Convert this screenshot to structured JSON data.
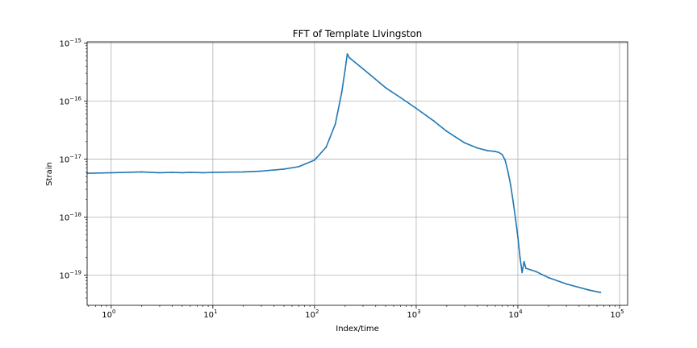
{
  "chart_data": {
    "type": "line",
    "title": "FFT of Template LIvingston",
    "xlabel": "Index/time",
    "ylabel": "Strain",
    "xscale": "log",
    "yscale": "log",
    "xlim": [
      0.58,
      120000
    ],
    "ylim": [
      3e-20,
      1.05e-15
    ],
    "grid": true,
    "x_ticks": [
      {
        "value": 1,
        "base": "10",
        "exp": "0"
      },
      {
        "value": 10,
        "base": "10",
        "exp": "1"
      },
      {
        "value": 100,
        "base": "10",
        "exp": "2"
      },
      {
        "value": 1000,
        "base": "10",
        "exp": "3"
      },
      {
        "value": 10000,
        "base": "10",
        "exp": "4"
      },
      {
        "value": 100000,
        "base": "10",
        "exp": "5"
      }
    ],
    "y_ticks": [
      {
        "value": 1e-19,
        "base": "10",
        "exp": "−19"
      },
      {
        "value": 1e-18,
        "base": "10",
        "exp": "−18"
      },
      {
        "value": 1e-17,
        "base": "10",
        "exp": "−17"
      },
      {
        "value": 1e-16,
        "base": "10",
        "exp": "−16"
      },
      {
        "value": 1e-15,
        "base": "10",
        "exp": "−15"
      }
    ],
    "series": [
      {
        "color": "#1f77b4",
        "x": [
          0.58,
          1,
          2,
          3,
          4,
          5,
          6,
          8,
          10,
          20,
          30,
          50,
          70,
          100,
          130,
          160,
          185,
          200,
          210,
          220,
          300,
          500,
          700,
          1000,
          1500,
          2000,
          3000,
          4000,
          5000,
          6000,
          6500,
          7000,
          7500,
          8000,
          8500,
          9000,
          9500,
          10000,
          10500,
          11000,
          11500,
          12000,
          15000,
          20000,
          30000,
          50000,
          65000
        ],
        "y": [
          5.7e-18,
          5.8e-18,
          6e-18,
          5.8e-18,
          5.9e-18,
          5.8e-18,
          5.9e-18,
          5.8e-18,
          5.9e-18,
          6e-18,
          6.2e-18,
          6.7e-18,
          7.4e-18,
          9.6e-18,
          1.6e-17,
          4e-17,
          1.4e-16,
          3.5e-16,
          6.5e-16,
          5.6e-16,
          3.6e-16,
          1.7e-16,
          1.15e-16,
          7.5e-17,
          4.5e-17,
          3e-17,
          1.9e-17,
          1.55e-17,
          1.4e-17,
          1.35e-17,
          1.3e-17,
          1.2e-17,
          9.5e-18,
          6e-18,
          3.5e-18,
          1.8e-18,
          9e-19,
          4.5e-19,
          2e-19,
          1.1e-19,
          1.7e-19,
          1.3e-19,
          1.15e-19,
          9e-20,
          7e-20,
          5.5e-20,
          5e-20
        ]
      }
    ]
  }
}
